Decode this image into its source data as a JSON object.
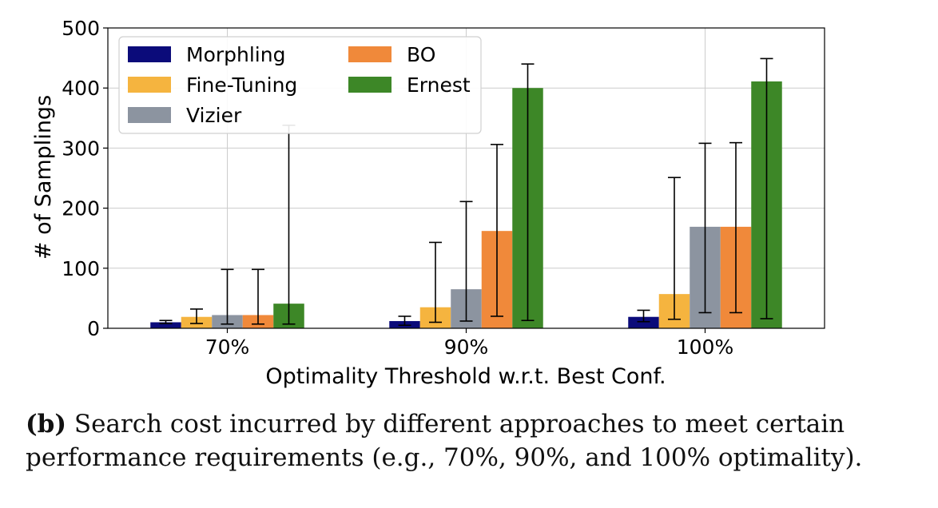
{
  "chart_data": {
    "type": "bar",
    "categories": [
      "70%",
      "90%",
      "100%"
    ],
    "xlabel": "Optimality Threshold  w.r.t. Best Conf.",
    "ylabel": "# of Samplings",
    "ylim": [
      0,
      500
    ],
    "yticks": [
      0,
      100,
      200,
      300,
      400,
      500
    ],
    "grid": true,
    "legend_position": "top-left",
    "series": [
      {
        "name": "Morphling",
        "color": "#0b0b7a",
        "values": [
          10,
          12,
          19
        ],
        "err_low": [
          8,
          5,
          11
        ],
        "err_high": [
          13,
          20,
          30
        ]
      },
      {
        "name": "Fine-Tuning",
        "color": "#f5b43f",
        "values": [
          19,
          35,
          57
        ],
        "err_low": [
          8,
          10,
          15
        ],
        "err_high": [
          32,
          143,
          251
        ]
      },
      {
        "name": "Vizier",
        "color": "#8c94a0",
        "values": [
          22,
          65,
          169
        ],
        "err_low": [
          7,
          12,
          26
        ],
        "err_high": [
          98,
          211,
          308
        ]
      },
      {
        "name": "BO",
        "color": "#f0893a",
        "values": [
          22,
          162,
          169
        ],
        "err_low": [
          7,
          20,
          26
        ],
        "err_high": [
          98,
          306,
          309
        ]
      },
      {
        "name": "Ernest",
        "color": "#3d8727",
        "values": [
          41,
          400,
          411
        ],
        "err_low": [
          7,
          13,
          16
        ],
        "err_high": [
          338,
          440,
          449
        ]
      }
    ]
  },
  "caption": {
    "label": "(b)",
    "text": " Search cost incurred by different approaches to meet certain performance requirements (e.g., 70%, 90%, and 100% optimality)."
  }
}
